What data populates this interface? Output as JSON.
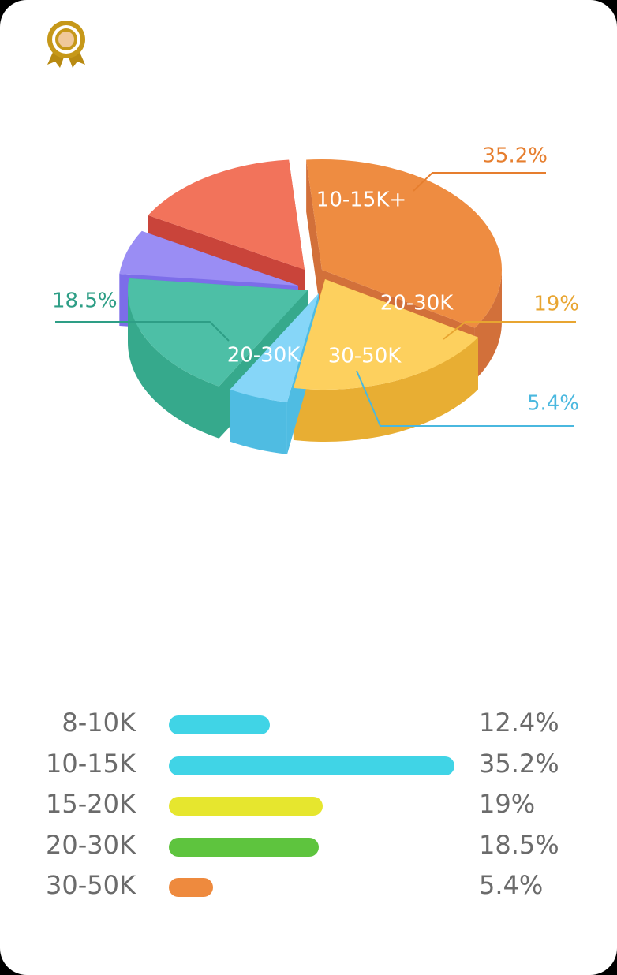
{
  "badge_icon": "award-ribbon-icon",
  "chart_data": [
    {
      "type": "pie",
      "style": "3d-exploded",
      "slices": [
        {
          "key": "orange",
          "label": "10-15K+",
          "value": 35.2,
          "percent_label": "35.2%",
          "color": "#ee8c41",
          "side": "#d2703a",
          "label_color": "#e67e2e"
        },
        {
          "key": "yellow",
          "label": "20-30K",
          "value": 19,
          "percent_label": "19%",
          "color": "#fdd05e",
          "side": "#e8ae33",
          "label_color": "#e8a531"
        },
        {
          "key": "lightblue",
          "label": "30-50K",
          "value": 5.4,
          "percent_label": "5.4%",
          "color": "#86d6f8",
          "side": "#4fbce2",
          "label_color": "#4ab8df"
        },
        {
          "key": "green",
          "label": "20-30K",
          "value": 18.5,
          "percent_label": "18.5%",
          "color": "#4dbfa6",
          "side": "#36a98c",
          "label_color": "#2e9e86"
        },
        {
          "key": "purple",
          "label": "",
          "value": 6.5,
          "percent_label": "",
          "color": "#9a8df4",
          "side": "#7c6de9",
          "label_color": "#7c6de9"
        },
        {
          "key": "red",
          "label": "",
          "value": 15.4,
          "percent_label": "",
          "color": "#f2735b",
          "side": "#c9443a",
          "label_color": "#c9443a"
        }
      ]
    },
    {
      "type": "bar",
      "orientation": "horizontal",
      "xlim": [
        0,
        35.2
      ],
      "categories": [
        "8-10K",
        "10-15K",
        "15-20K",
        "20-30K",
        "30-50K"
      ],
      "values": [
        12.4,
        35.2,
        19,
        18.5,
        5.4
      ],
      "value_labels": [
        "12.4%",
        "35.2%",
        "19%",
        "18.5%",
        "5.4%"
      ],
      "colors": [
        "#40d4e6",
        "#40d4e6",
        "#e6e62e",
        "#5ec43e",
        "#ee8a3e"
      ]
    }
  ]
}
